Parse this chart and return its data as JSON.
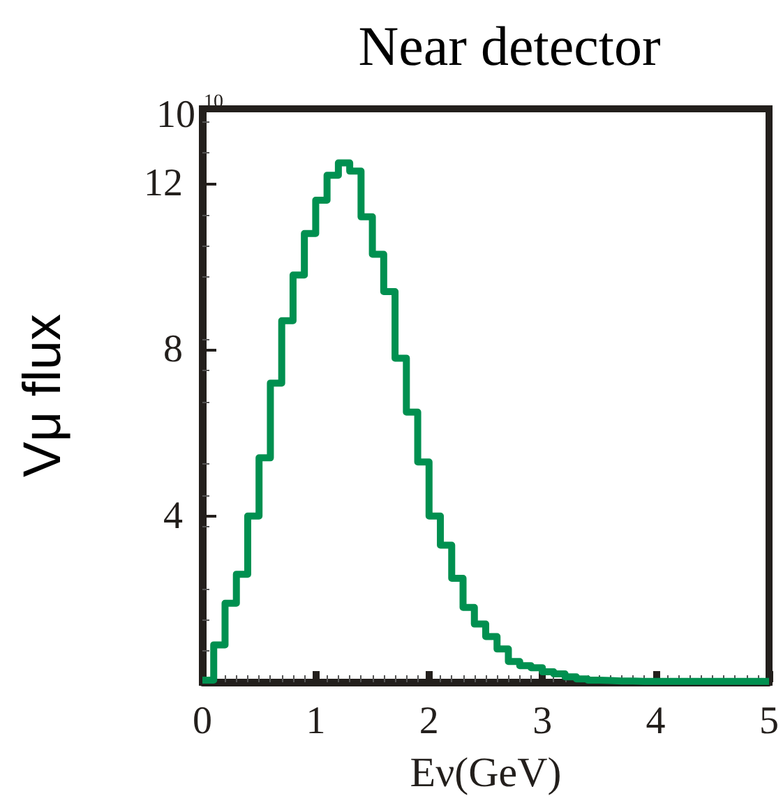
{
  "chart_data": {
    "type": "histogram",
    "title": "Near detector",
    "xlabel": "Eν(GeV)",
    "ylabel": "Vμ flux",
    "annotations": [
      "10$^{10}$"
    ],
    "bins": [
      0,
      0.1,
      0.2,
      0.3,
      0.4,
      0.5,
      0.6,
      0.7,
      0.8,
      0.9,
      1.0,
      1.1,
      1.2,
      1.3,
      1.4,
      1.5,
      1.6,
      1.7,
      1.8,
      1.9,
      2.0,
      2.1,
      2.2,
      2.3,
      2.4,
      2.5,
      2.6,
      2.7,
      2.8,
      2.9,
      3.0,
      3.1,
      3.2,
      3.3,
      3.4,
      3.5,
      3.6,
      3.7,
      3.8,
      3.9,
      4.0,
      4.1,
      4.2,
      4.3,
      4.4,
      4.5,
      4.6,
      4.7,
      4.8,
      4.9,
      5.0
    ],
    "values": [
      0.05,
      0.9,
      1.9,
      2.6,
      4.0,
      5.4,
      7.2,
      8.7,
      9.8,
      10.8,
      11.6,
      12.2,
      12.5,
      12.3,
      11.2,
      10.3,
      9.4,
      7.8,
      6.5,
      5.3,
      4.0,
      3.3,
      2.5,
      1.8,
      1.4,
      1.1,
      0.8,
      0.5,
      0.4,
      0.35,
      0.25,
      0.2,
      0.13,
      0.08,
      0.05,
      0.04,
      0.03,
      0.03,
      0.02,
      0.02,
      0.02,
      0.02,
      0.02,
      0.02,
      0.02,
      0.02,
      0.02,
      0.02,
      0.02,
      0.02
    ],
    "color": "#009050",
    "xlim": [
      0,
      5
    ],
    "xticks": [
      0,
      1,
      2,
      3,
      4,
      5
    ],
    "ylim": [
      0,
      13.8
    ],
    "yticks": [
      4,
      8,
      12
    ]
  }
}
